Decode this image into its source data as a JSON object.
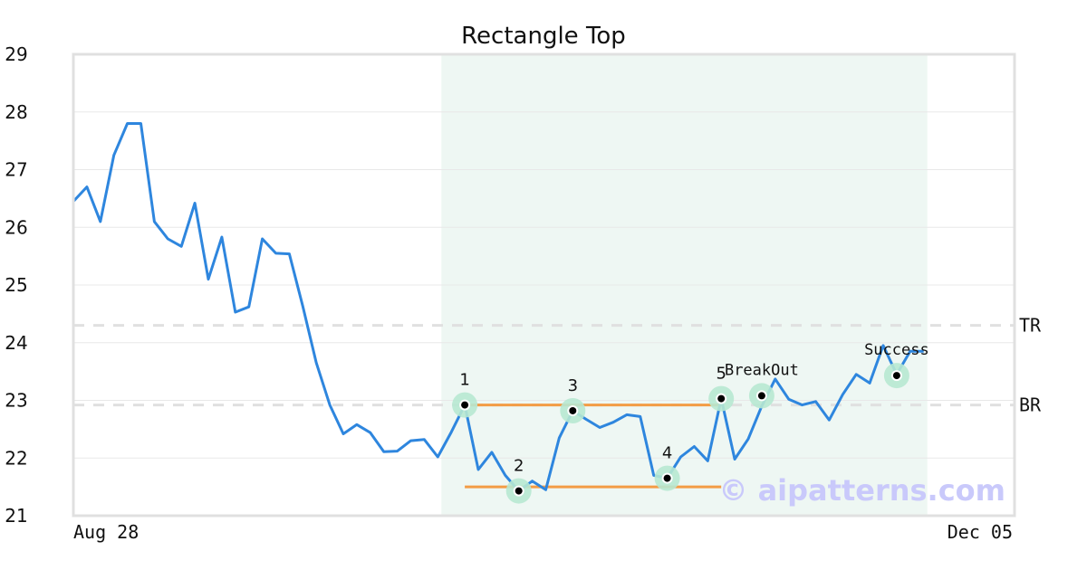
{
  "chart_data": {
    "type": "line",
    "title": "Rectangle Top",
    "xlabel": "",
    "ylabel": "",
    "ylim": [
      21,
      29
    ],
    "yticks": [
      21,
      22,
      23,
      24,
      25,
      26,
      27,
      28,
      29
    ],
    "x_tick_labels": [
      "Aug 28",
      "Dec 05"
    ],
    "grid": true,
    "colors": {
      "line": "#2e86de",
      "rectangle_lines": "#f39c45",
      "highlight_band": "#eef7f3",
      "marker_halo": "#b7e8d2",
      "reference_lines": "#e0e0e0"
    },
    "series": [
      {
        "values": [
          26.45,
          26.7,
          26.1,
          27.25,
          27.8,
          27.8,
          26.1,
          25.8,
          25.67,
          26.42,
          25.1,
          25.83,
          24.53,
          24.62,
          25.8,
          25.55,
          25.54,
          24.63,
          23.65,
          22.92,
          22.42,
          22.58,
          22.44,
          22.11,
          22.12,
          22.3,
          22.32,
          22.02,
          22.45,
          22.92,
          21.8,
          22.1,
          21.7,
          21.43,
          21.6,
          21.45,
          22.35,
          22.82,
          22.67,
          22.53,
          22.62,
          22.75,
          22.72,
          21.7,
          21.65,
          22.02,
          22.2,
          21.95,
          23.03,
          21.98,
          22.33,
          22.9,
          23.37,
          23.02,
          22.92,
          22.98,
          22.66,
          23.1,
          23.45,
          23.3,
          23.95,
          23.45,
          23.85,
          23.85
        ]
      }
    ],
    "highlight_band": {
      "x_start": 27,
      "x_end": 63
    },
    "reference_lines": [
      {
        "label": "TR",
        "y": 24.3
      },
      {
        "label": "BR",
        "y": 22.92
      }
    ],
    "rectangle_lines": [
      {
        "x_start": 29,
        "x_end": 48,
        "y": 22.92
      },
      {
        "x_start": 29,
        "x_end": 48,
        "y": 21.5
      }
    ],
    "points": [
      {
        "label": "1",
        "x": 29,
        "y": 22.92
      },
      {
        "label": "2",
        "x": 33,
        "y": 21.43
      },
      {
        "label": "3",
        "x": 37,
        "y": 22.82
      },
      {
        "label": "4",
        "x": 44,
        "y": 21.65
      },
      {
        "label": "5",
        "x": 48,
        "y": 23.03
      }
    ],
    "annotations": [
      {
        "label": "BreakOut",
        "x": 51,
        "y": 23.08
      },
      {
        "label": "Success",
        "x": 61,
        "y": 23.43
      }
    ],
    "watermark": "© aipatterns.com"
  }
}
